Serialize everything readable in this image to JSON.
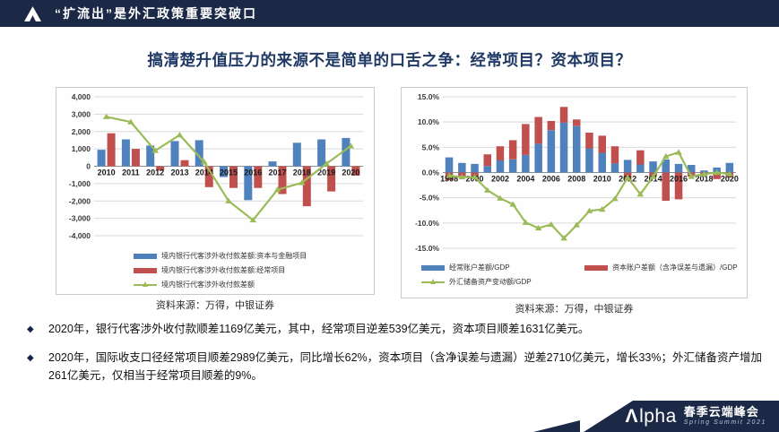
{
  "header": {
    "logo_icon": "alpha-triangle-icon",
    "title": "“扩流出”是外汇政策重要突破口"
  },
  "slide_title": "搞清楚升值压力的来源不是简单的口舌之争：经常项目？资本项目？",
  "colors": {
    "navy": "#1c2946",
    "title_blue": "#1f3864",
    "bar_blue": "#4f81bd",
    "bar_red": "#c0504d",
    "line_green": "#9bbb59",
    "grid": "#d9d9d9"
  },
  "chart_data": [
    {
      "type": "bar",
      "subtype": "grouped-bars-with-line",
      "title": "",
      "xlabel": "",
      "ylabel": "",
      "categories": [
        2010,
        2011,
        2012,
        2013,
        2014,
        2015,
        2016,
        2017,
        2018,
        2019,
        2020
      ],
      "series": [
        {
          "name": "境内银行代客涉外收付款差额:资本与金融项目",
          "type": "bar",
          "color": "#4f81bd",
          "values": [
            950,
            1550,
            1200,
            1450,
            1500,
            -620,
            -1950,
            280,
            1350,
            1550,
            1631
          ]
        },
        {
          "name": "境内银行代客涉外收付款差额:经常项目",
          "type": "bar",
          "color": "#c0504d",
          "values": [
            1900,
            1000,
            -250,
            350,
            -1200,
            -1250,
            -1250,
            -1600,
            -2300,
            -1450,
            -539
          ]
        },
        {
          "name": "境内银行代客涉外收付款差额",
          "type": "line",
          "color": "#9bbb59",
          "values": [
            2850,
            2550,
            900,
            1800,
            250,
            -2000,
            -3100,
            -1350,
            -950,
            150,
            1169
          ]
        }
      ],
      "ylim": [
        -4000,
        4000
      ],
      "ystep": 1000,
      "yfmt": "comma",
      "grid": true,
      "legend_position": "bottom",
      "source": "资料来源：万得，中银证券"
    },
    {
      "type": "bar",
      "subtype": "stacked-bars-with-line",
      "title": "",
      "xlabel": "",
      "ylabel": "",
      "categories": [
        1998,
        1999,
        2000,
        2001,
        2002,
        2003,
        2004,
        2005,
        2006,
        2007,
        2008,
        2009,
        2010,
        2011,
        2012,
        2013,
        2014,
        2015,
        2016,
        2017,
        2018,
        2019,
        2020
      ],
      "series": [
        {
          "name": "经常账户差额/GDP",
          "type": "bar",
          "color": "#4f81bd",
          "values": [
            3.0,
            1.9,
            1.7,
            1.3,
            2.4,
            2.6,
            3.5,
            5.7,
            8.4,
            9.9,
            9.2,
            4.8,
            3.9,
            1.8,
            2.5,
            1.6,
            2.2,
            2.6,
            1.7,
            1.5,
            0.4,
            1.0,
            1.9
          ]
        },
        {
          "name": "资本账户差额（含净误差与遗漏）/GDP",
          "type": "bar",
          "color": "#c0504d",
          "values": [
            -1.5,
            -1.0,
            -0.9,
            2.3,
            2.8,
            3.8,
            6.1,
            5.3,
            1.8,
            3.1,
            1.3,
            3.1,
            3.4,
            3.4,
            -1.6,
            2.8,
            -0.8,
            -5.6,
            -5.3,
            -0.8,
            -0.5,
            -1.3,
            -1.0
          ]
        },
        {
          "name": "外汇储备资产变动额/GDP",
          "type": "line",
          "color": "#9bbb59",
          "values": [
            -0.6,
            -0.9,
            -0.9,
            -3.5,
            -5.1,
            -6.3,
            -9.9,
            -11.0,
            -10.3,
            -13.0,
            -10.4,
            -7.6,
            -7.3,
            -5.2,
            -1.0,
            -4.3,
            -0.8,
            3.2,
            4.0,
            -0.8,
            -0.3,
            0.0,
            -0.3
          ]
        }
      ],
      "ylim": [
        -15,
        15
      ],
      "ystep": 5,
      "yfmt": "pct",
      "grid": true,
      "legend_position": "bottom",
      "xlabel_every": 2,
      "source": "资料来源：万得，中银证券"
    }
  ],
  "bullet_char": "◆",
  "bullets": [
    "2020年，银行代客涉外收付款顺差1169亿美元，其中，经常项目逆差539亿美元，资本项目顺差1631亿美元。",
    "2020年，国际收支口径经常项目顺差2989亿美元，同比增长62%，资本项目（含净误差与遗漏）逆差2710亿美元，增长33%；外汇储备资产增加261亿美元，仅相当于经常项目顺差的9%。"
  ],
  "footer": {
    "brand_lambda": "Λ",
    "brand_rest": "lpha",
    "title_cn": "春季云端峰会",
    "subtitle_en": "Spring Summit 2021"
  }
}
